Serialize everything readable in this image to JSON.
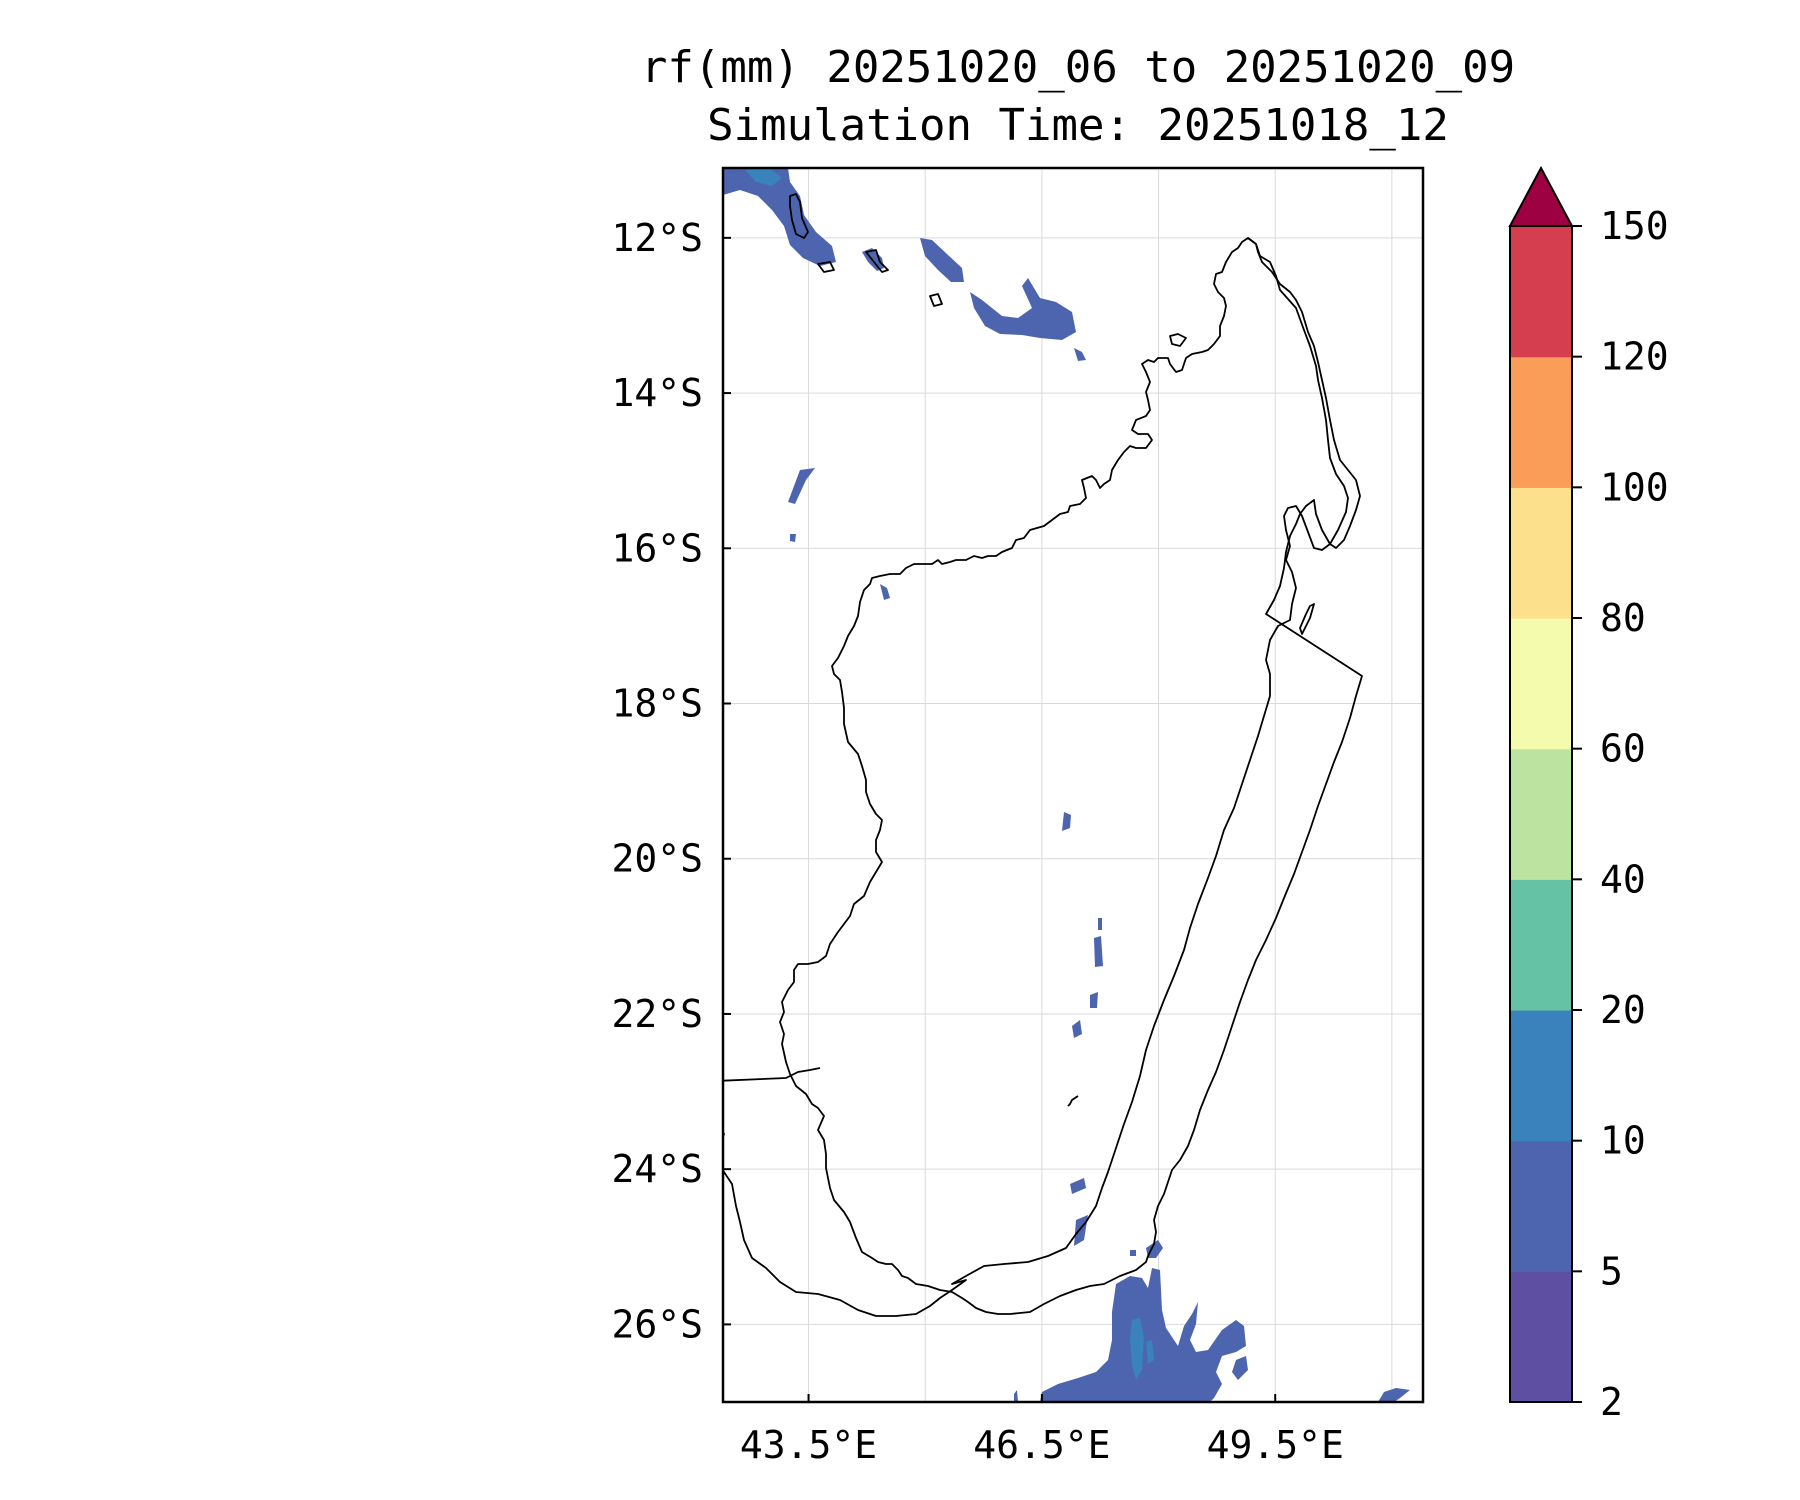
{
  "title": {
    "line1": "rf(mm) 20251020_06 to 20251020_09",
    "line2": "Simulation Time: 20251018_12"
  },
  "map": {
    "lon_range": [
      42.4,
      51.4
    ],
    "lat_range": [
      -27.0,
      -11.1
    ],
    "lat_ticks": [
      {
        "value": -12,
        "label": "12°S"
      },
      {
        "value": -14,
        "label": "14°S"
      },
      {
        "value": -16,
        "label": "16°S"
      },
      {
        "value": -18,
        "label": "18°S"
      },
      {
        "value": -20,
        "label": "20°S"
      },
      {
        "value": -22,
        "label": "22°S"
      },
      {
        "value": -24,
        "label": "24°S"
      },
      {
        "value": -26,
        "label": "26°S"
      }
    ],
    "lon_ticks": [
      {
        "value": 43.5,
        "label": "43.5°E"
      },
      {
        "value": 46.5,
        "label": "46.5°E"
      },
      {
        "value": 49.5,
        "label": "49.5°E"
      }
    ],
    "minor_lon_grid": [
      45.0,
      48.0,
      51.0
    ],
    "coastline_color": "#000000",
    "grid": true
  },
  "colorbar": {
    "levels": [
      "2",
      "5",
      "10",
      "20",
      "40",
      "60",
      "80",
      "100",
      "120",
      "150"
    ],
    "colors": [
      "#5e4fa2",
      "#4d65ae",
      "#3a82bb",
      "#66c2a5",
      "#bde3a0",
      "#f5fbad",
      "#fde08b",
      "#f99d58",
      "#d53e4f"
    ],
    "extend_color": "#9e0142",
    "extend": "max"
  }
}
